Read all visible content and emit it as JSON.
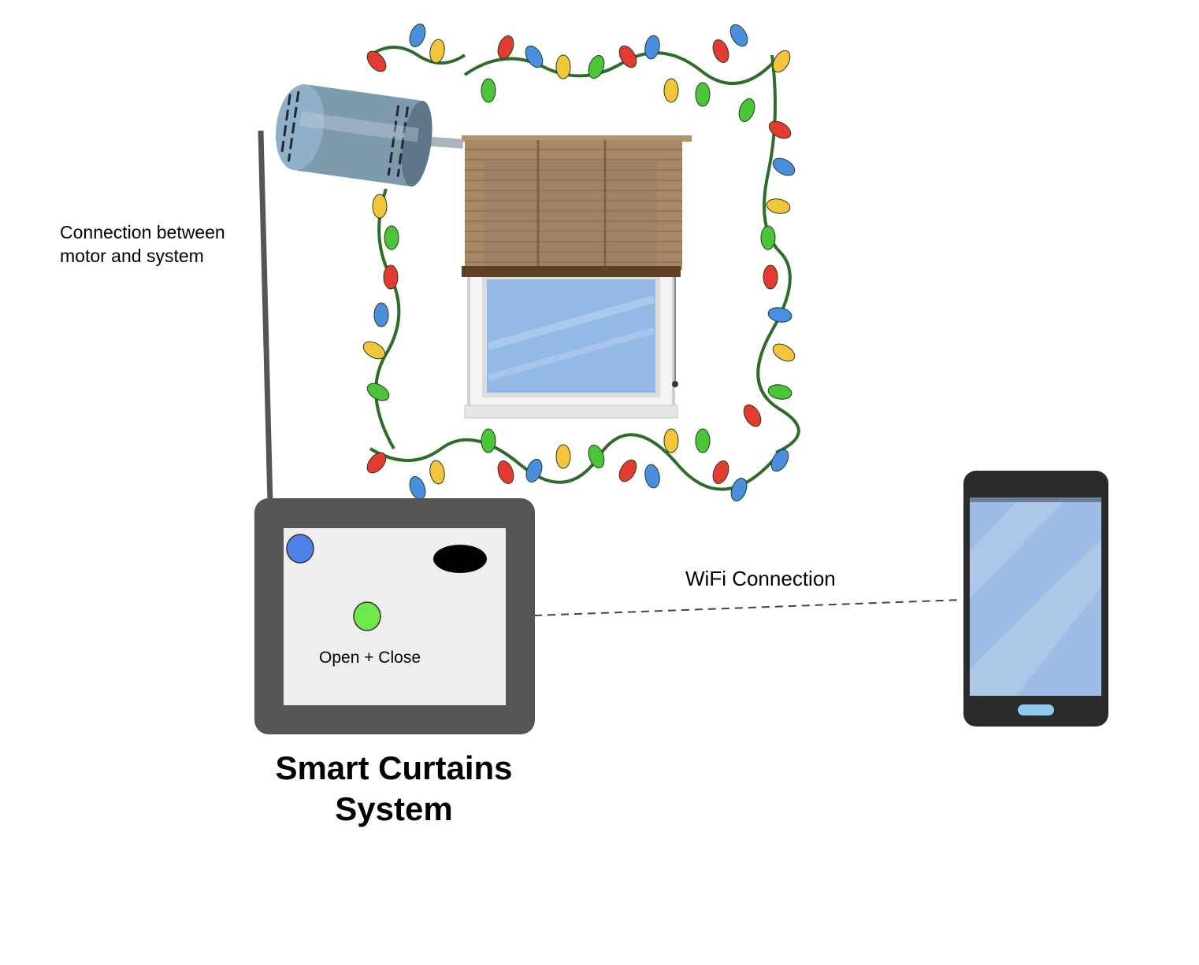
{
  "diagram": {
    "motor_connection_label": "Connection between\nmotor and system",
    "wifi_label": "WiFi Connection",
    "controller_button_label": "Open + Close",
    "system_title": "Smart Curtains\nSystem"
  },
  "colors": {
    "controller_frame": "#555555",
    "controller_panel": "#eeeeee",
    "led_blue": "#4f80e8",
    "button_green": "#6ee84a",
    "phone_body": "#2b2b2b",
    "phone_screen": "#9dbde6",
    "phone_home_button": "#8ec9ef",
    "blind": "#a88866",
    "window_glass": "#93b9e6",
    "light_colors": [
      "#e33b32",
      "#4a8ee0",
      "#f2c53a",
      "#4cc43a"
    ]
  }
}
